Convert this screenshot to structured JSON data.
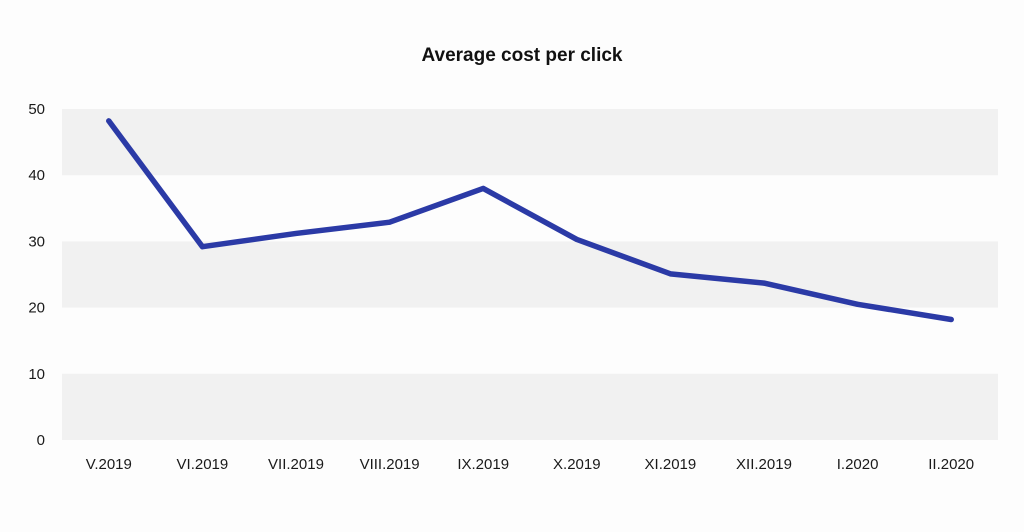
{
  "chart_data": {
    "type": "line",
    "title": "Average cost per click",
    "xlabel": "",
    "ylabel": "",
    "categories": [
      "V.2019",
      "VI.2019",
      "VII.2019",
      "VIII.2019",
      "IX.2019",
      "X.2019",
      "XI.2019",
      "XII.2019",
      "I.2020",
      "II.2020"
    ],
    "series": [
      {
        "values": [
          48.2,
          29.2,
          31.2,
          32.9,
          38.0,
          30.3,
          25.1,
          23.7,
          20.5,
          18.2
        ],
        "color": "#2b3aa6"
      }
    ],
    "ylim": [
      0,
      50
    ],
    "yticks": [
      0,
      10,
      20,
      30,
      40,
      50
    ],
    "ytick_labels": [
      "0",
      "10",
      "20",
      "30",
      "40",
      "50"
    ],
    "grid": "alternating horizontal bands",
    "band_color": "#f1f1f1",
    "legend": "none"
  }
}
